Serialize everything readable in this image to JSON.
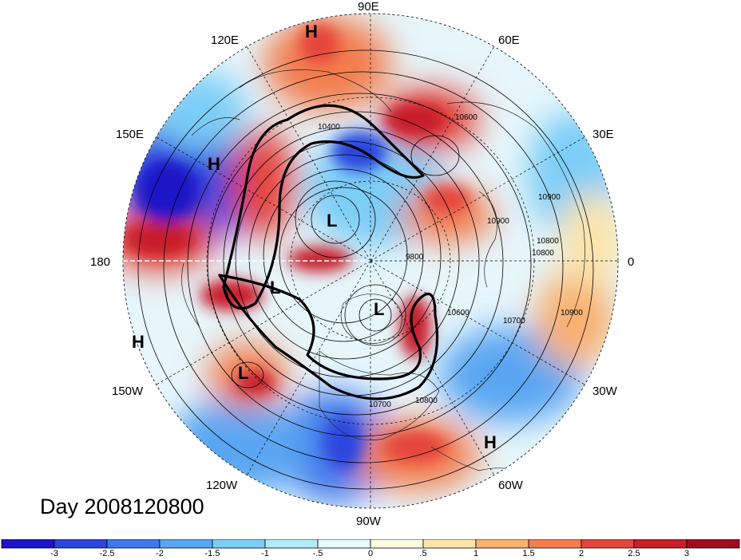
{
  "title": "Day 2008120800",
  "longitude_labels": [
    "90E",
    "60E",
    "30E",
    "0",
    "30W",
    "60W",
    "90W",
    "120W",
    "150W",
    "180",
    "150E",
    "120E"
  ],
  "contour_labels": [
    "10400",
    "10600",
    "10900",
    "10800",
    "10900",
    "9800",
    "10600",
    "10700",
    "10800",
    "10700",
    "10800",
    "10900"
  ],
  "pressure_centers": [
    "H",
    "H",
    "H",
    "L",
    "L",
    "L",
    "L",
    "H"
  ],
  "colorbar": {
    "colors": [
      "#1e14c8",
      "#2a46de",
      "#3f78ec",
      "#5aa6f2",
      "#7ccdf7",
      "#b0ecfa",
      "#e6fbfd",
      "#fffbe2",
      "#fde4a8",
      "#f9b070",
      "#f37d4e",
      "#e5453a",
      "#c81f2a",
      "#9e0e1e"
    ],
    "labels": [
      "-3",
      "-2.5",
      "-2",
      "-1.5",
      "-1",
      "-.5",
      "0",
      ".5",
      "1",
      "1.5",
      "2",
      "2.5",
      "3"
    ]
  }
}
